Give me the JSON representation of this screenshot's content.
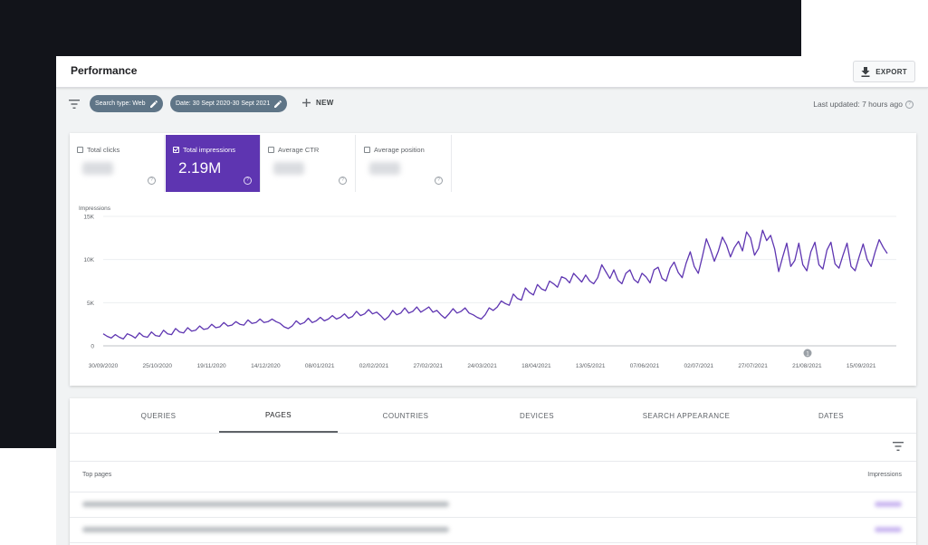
{
  "header": {
    "title": "Performance",
    "export_label": "EXPORT"
  },
  "filters": {
    "chips": [
      "Search type: Web",
      "Date: 30 Sept 2020-30 Sept 2021"
    ],
    "new_label": "NEW",
    "last_updated": "Last updated: 7 hours ago"
  },
  "metrics": [
    {
      "label": "Total clicks",
      "value": "",
      "checked": false
    },
    {
      "label": "Total impressions",
      "value": "2.19M",
      "checked": true
    },
    {
      "label": "Average CTR",
      "value": "",
      "checked": false
    },
    {
      "label": "Average position",
      "value": "",
      "checked": false
    }
  ],
  "chart_data": {
    "type": "line",
    "ylabel": "Impressions",
    "ylim": [
      0,
      15000
    ],
    "yticks": [
      0,
      5000,
      10000,
      15000
    ],
    "ytick_labels": [
      "0",
      "5K",
      "10K",
      "15K"
    ],
    "xtick_labels": [
      "30/09/2020",
      "25/10/2020",
      "19/11/2020",
      "14/12/2020",
      "08/01/2021",
      "02/02/2021",
      "27/02/2021",
      "24/03/2021",
      "18/04/2021",
      "13/05/2021",
      "07/06/2021",
      "02/07/2021",
      "27/07/2021",
      "21/08/2021",
      "15/09/2021"
    ],
    "annotation": "1",
    "color": "#5e35b1",
    "series": [
      {
        "values": [
          1400,
          1100,
          900,
          1300,
          1000,
          800,
          1400,
          1200,
          900,
          1500,
          1100,
          1000,
          1600,
          1200,
          1100,
          1800,
          1400,
          1300,
          2000,
          1600,
          1500,
          2100,
          1700,
          1800,
          2300,
          1900,
          2000,
          2500,
          2100,
          2200,
          2700,
          2300,
          2400,
          2800,
          2500,
          2400,
          3000,
          2600,
          2700,
          3100,
          2700,
          2800,
          3100,
          2800,
          2600,
          2200,
          2000,
          2300,
          2900,
          2500,
          2700,
          3200,
          2700,
          2900,
          3300,
          2900,
          3100,
          3500,
          3100,
          3300,
          3700,
          3200,
          3400,
          4000,
          3500,
          3700,
          4200,
          3700,
          3900,
          3500,
          3000,
          3400,
          4100,
          3600,
          3800,
          4400,
          3800,
          4000,
          4500,
          3900,
          4200,
          4500,
          3900,
          4100,
          3600,
          3200,
          3700,
          4300,
          3800,
          4000,
          4400,
          3800,
          3600,
          3300,
          3100,
          3600,
          4400,
          4100,
          4500,
          5200,
          4900,
          4700,
          6000,
          5500,
          5300,
          6700,
          6200,
          5900,
          7100,
          6600,
          6400,
          7500,
          7200,
          6800,
          8000,
          7800,
          7300,
          8400,
          7900,
          7400,
          8200,
          7500,
          7200,
          7900,
          9400,
          8600,
          7800,
          8800,
          7600,
          7200,
          8400,
          8800,
          7700,
          7300,
          8400,
          8000,
          7300,
          8800,
          9100,
          7800,
          7500,
          9000,
          9700,
          8500,
          7900,
          9600,
          10900,
          9200,
          8400,
          10300,
          12400,
          11200,
          9800,
          11000,
          12600,
          11700,
          10300,
          11400,
          12100,
          11000,
          13200,
          12500,
          10500,
          11300,
          13400,
          12200,
          12800,
          11200,
          8600,
          10300,
          11900,
          9200,
          9900,
          11900,
          9400,
          8700,
          10900,
          12000,
          9400,
          8900,
          11100,
          12000,
          9500,
          9000,
          10500,
          11900,
          9200,
          8700,
          10300,
          11800,
          10000,
          9200,
          10900,
          12300,
          11400,
          10700
        ]
      }
    ]
  },
  "tabs": [
    "QUERIES",
    "PAGES",
    "COUNTRIES",
    "DEVICES",
    "SEARCH APPEARANCE",
    "DATES"
  ],
  "active_tab": "PAGES",
  "table": {
    "col_pages": "Top pages",
    "col_impressions": "Impressions"
  }
}
